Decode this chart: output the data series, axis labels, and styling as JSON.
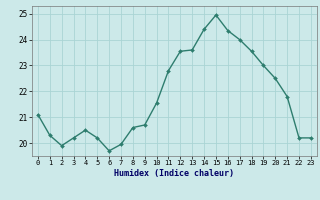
{
  "x": [
    0,
    1,
    2,
    3,
    4,
    5,
    6,
    7,
    8,
    9,
    10,
    11,
    12,
    13,
    14,
    15,
    16,
    17,
    18,
    19,
    20,
    21,
    22,
    23
  ],
  "y": [
    21.1,
    20.3,
    19.9,
    20.2,
    20.5,
    20.2,
    19.7,
    19.95,
    20.6,
    20.7,
    21.55,
    22.8,
    23.55,
    23.6,
    24.4,
    24.95,
    24.35,
    24.0,
    23.55,
    23.0,
    22.5,
    21.8,
    20.2,
    20.2
  ],
  "line_color": "#2e7d6e",
  "marker": "D",
  "marker_size": 2.0,
  "bg_color": "#cce9e9",
  "grid_color": "#aad4d4",
  "xlabel": "Humidex (Indice chaleur)",
  "ylim": [
    19.5,
    25.3
  ],
  "xlim": [
    -0.5,
    23.5
  ],
  "yticks": [
    20,
    21,
    22,
    23,
    24,
    25
  ],
  "xticks": [
    0,
    1,
    2,
    3,
    4,
    5,
    6,
    7,
    8,
    9,
    10,
    11,
    12,
    13,
    14,
    15,
    16,
    17,
    18,
    19,
    20,
    21,
    22,
    23
  ],
  "xlabel_fontsize": 6.0,
  "xlabel_color": "#000066",
  "tick_fontsize": 5.0,
  "ytick_fontsize": 5.5,
  "linewidth": 1.0
}
